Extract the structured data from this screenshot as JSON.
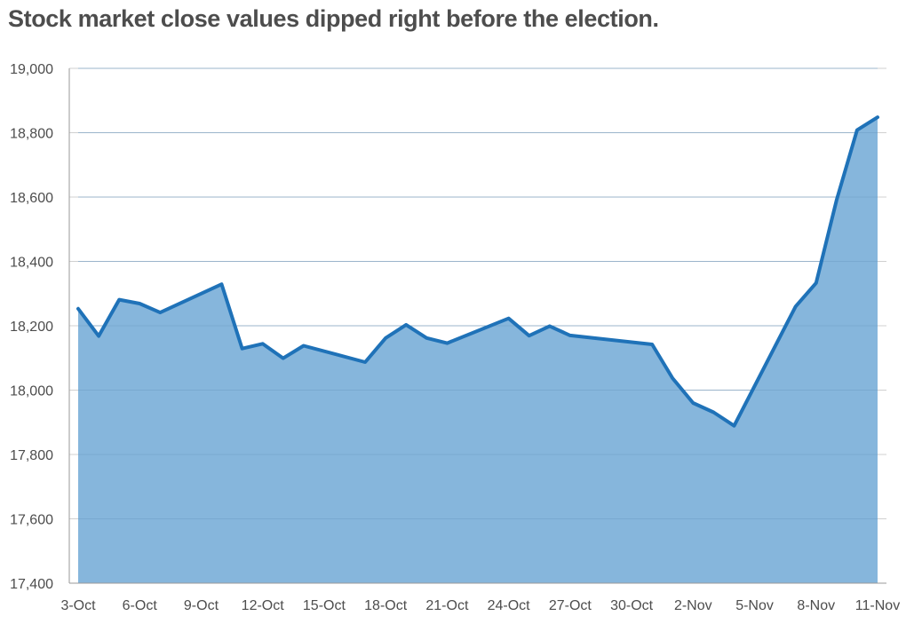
{
  "title": "Stock market close values dipped right before the election.",
  "chart_data": {
    "type": "area",
    "title": "Stock market close values dipped right before the election.",
    "xlabel": "",
    "ylabel": "",
    "ylim": [
      17400,
      19000
    ],
    "yticks": [
      17400,
      17600,
      17800,
      18000,
      18200,
      18400,
      18600,
      18800,
      19000
    ],
    "ytick_labels": [
      "17,400",
      "17,600",
      "17,800",
      "18,000",
      "18,200",
      "18,400",
      "18,600",
      "18,800",
      "19,000"
    ],
    "xlim": [
      "3-Oct",
      "11-Nov"
    ],
    "xticks": [
      "3-Oct",
      "6-Oct",
      "9-Oct",
      "12-Oct",
      "15-Oct",
      "18-Oct",
      "21-Oct",
      "24-Oct",
      "27-Oct",
      "30-Oct",
      "2-Nov",
      "5-Nov",
      "8-Nov",
      "11-Nov"
    ],
    "grid": true,
    "colors": {
      "line": "#1f72b8",
      "fill": "#86b6dc"
    },
    "points": [
      {
        "x": "3-Oct",
        "y": 18253
      },
      {
        "x": "4-Oct",
        "y": 18168
      },
      {
        "x": "5-Oct",
        "y": 18281
      },
      {
        "x": "6-Oct",
        "y": 18269
      },
      {
        "x": "7-Oct",
        "y": 18241
      },
      {
        "x": "10-Oct",
        "y": 18329
      },
      {
        "x": "11-Oct",
        "y": 18129
      },
      {
        "x": "12-Oct",
        "y": 18144
      },
      {
        "x": "13-Oct",
        "y": 18099
      },
      {
        "x": "14-Oct",
        "y": 18138
      },
      {
        "x": "17-Oct",
        "y": 18087
      },
      {
        "x": "18-Oct",
        "y": 18162
      },
      {
        "x": "19-Oct",
        "y": 18203
      },
      {
        "x": "20-Oct",
        "y": 18162
      },
      {
        "x": "21-Oct",
        "y": 18146
      },
      {
        "x": "24-Oct",
        "y": 18223
      },
      {
        "x": "25-Oct",
        "y": 18169
      },
      {
        "x": "26-Oct",
        "y": 18199
      },
      {
        "x": "27-Oct",
        "y": 18170
      },
      {
        "x": "31-Oct",
        "y": 18142
      },
      {
        "x": "1-Nov",
        "y": 18037
      },
      {
        "x": "2-Nov",
        "y": 17960
      },
      {
        "x": "3-Nov",
        "y": 17931
      },
      {
        "x": "4-Nov",
        "y": 17889
      },
      {
        "x": "7-Nov",
        "y": 18260
      },
      {
        "x": "8-Nov",
        "y": 18333
      },
      {
        "x": "9-Nov",
        "y": 18590
      },
      {
        "x": "10-Nov",
        "y": 18808
      },
      {
        "x": "11-Nov",
        "y": 18848
      }
    ]
  }
}
